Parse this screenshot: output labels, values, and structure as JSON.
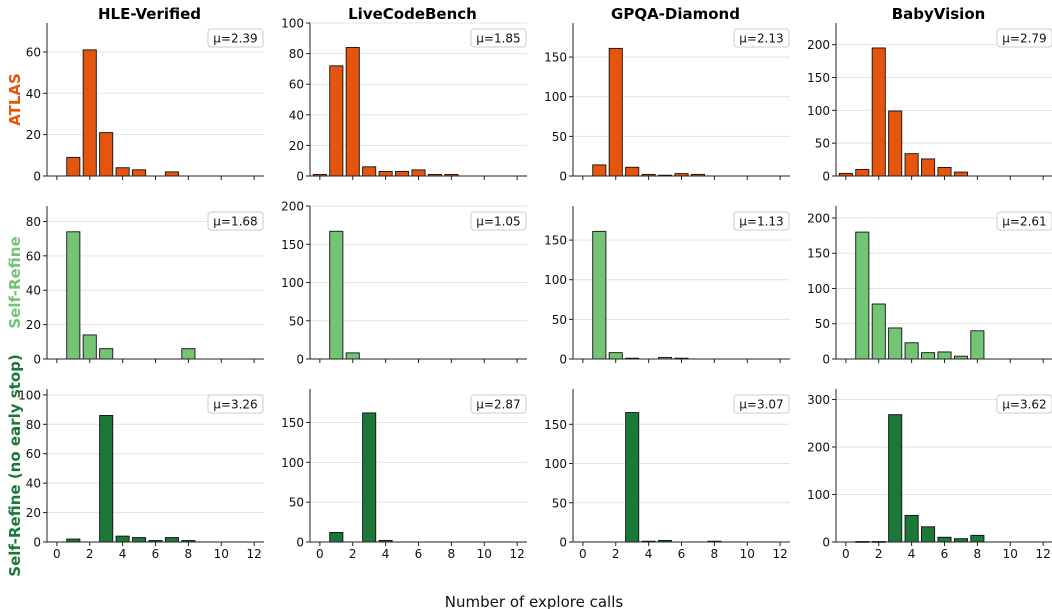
{
  "figure": {
    "xlabel": "Number of explore calls",
    "columns": [
      "HLE-Verified",
      "LiveCodeBench",
      "GPQA-Diamond",
      "BabyVision"
    ],
    "rows": [
      {
        "label": "ATLAS",
        "color": "#e6550d"
      },
      {
        "label": "Self-Refine",
        "color": "#74c476"
      },
      {
        "label": "Self-Refine (no early stop)",
        "color": "#1b7837"
      }
    ],
    "x_ticks": [
      "0",
      "2",
      "4",
      "6",
      "8",
      "10",
      "12"
    ]
  },
  "chart_data": [
    {
      "type": "bar",
      "title": "HLE-Verified",
      "row": "ATLAS",
      "x": [
        0,
        1,
        2,
        3,
        4,
        5,
        6,
        7,
        8,
        9,
        10,
        11,
        12
      ],
      "values": [
        0,
        9,
        61,
        21,
        4,
        3,
        0,
        2,
        0,
        0,
        0,
        0,
        0
      ],
      "ylim": [
        0,
        74
      ],
      "yticks": [
        0,
        20,
        40,
        60
      ],
      "mean_label": "μ=2.39"
    },
    {
      "type": "bar",
      "title": "LiveCodeBench",
      "row": "ATLAS",
      "x": [
        0,
        1,
        2,
        3,
        4,
        5,
        6,
        7,
        8,
        9,
        10,
        11,
        12
      ],
      "values": [
        1,
        72,
        84,
        6,
        3,
        3,
        4,
        1,
        1,
        0,
        0,
        0,
        0
      ],
      "ylim": [
        0,
        100
      ],
      "yticks": [
        0,
        20,
        40,
        60,
        80,
        100
      ],
      "mean_label": "μ=1.85"
    },
    {
      "type": "bar",
      "title": "GPQA-Diamond",
      "row": "ATLAS",
      "x": [
        0,
        1,
        2,
        3,
        4,
        5,
        6,
        7,
        8,
        9,
        10,
        11,
        12
      ],
      "values": [
        0,
        14,
        161,
        11,
        2,
        1,
        3,
        2,
        0,
        0,
        0,
        0,
        0
      ],
      "ylim": [
        0,
        193
      ],
      "yticks": [
        0,
        50,
        100,
        150
      ],
      "mean_label": "μ=2.13"
    },
    {
      "type": "bar",
      "title": "BabyVision",
      "row": "ATLAS",
      "x": [
        0,
        1,
        2,
        3,
        4,
        5,
        6,
        7,
        8,
        9,
        10,
        11,
        12
      ],
      "values": [
        4,
        10,
        195,
        99,
        34,
        26,
        13,
        6,
        0,
        0,
        0,
        0,
        0
      ],
      "ylim": [
        0,
        233
      ],
      "yticks": [
        0,
        50,
        100,
        150,
        200
      ],
      "mean_label": "μ=2.79"
    },
    {
      "type": "bar",
      "title": "HLE-Verified",
      "row": "Self-Refine",
      "x": [
        0,
        1,
        2,
        3,
        4,
        5,
        6,
        7,
        8,
        9,
        10,
        11,
        12
      ],
      "values": [
        0,
        74,
        14,
        6,
        0,
        0,
        0,
        0,
        6,
        0,
        0,
        0,
        0
      ],
      "ylim": [
        0,
        89
      ],
      "yticks": [
        0,
        20,
        40,
        60,
        80
      ],
      "mean_label": "μ=1.68"
    },
    {
      "type": "bar",
      "title": "LiveCodeBench",
      "row": "Self-Refine",
      "x": [
        0,
        1,
        2,
        3,
        4,
        5,
        6,
        7,
        8,
        9,
        10,
        11,
        12
      ],
      "values": [
        0,
        167,
        8,
        0,
        0,
        0,
        0,
        0,
        0,
        0,
        0,
        0,
        0
      ],
      "ylim": [
        0,
        200
      ],
      "yticks": [
        0,
        50,
        100,
        150,
        200
      ],
      "mean_label": "μ=1.05"
    },
    {
      "type": "bar",
      "title": "GPQA-Diamond",
      "row": "Self-Refine",
      "x": [
        0,
        1,
        2,
        3,
        4,
        5,
        6,
        7,
        8,
        9,
        10,
        11,
        12
      ],
      "values": [
        0,
        161,
        8,
        1,
        0,
        2,
        1,
        0,
        0,
        0,
        0,
        0,
        0
      ],
      "ylim": [
        0,
        193
      ],
      "yticks": [
        0,
        50,
        100,
        150
      ],
      "mean_label": "μ=1.13"
    },
    {
      "type": "bar",
      "title": "BabyVision",
      "row": "Self-Refine",
      "x": [
        0,
        1,
        2,
        3,
        4,
        5,
        6,
        7,
        8,
        9,
        10,
        11,
        12
      ],
      "values": [
        0,
        180,
        78,
        44,
        23,
        9,
        10,
        4,
        40,
        0,
        0,
        0,
        0
      ],
      "ylim": [
        0,
        217
      ],
      "yticks": [
        0,
        50,
        100,
        150,
        200
      ],
      "mean_label": "μ=2.61"
    },
    {
      "type": "bar",
      "title": "HLE-Verified",
      "row": "Self-Refine (no early stop)",
      "x": [
        0,
        1,
        2,
        3,
        4,
        5,
        6,
        7,
        8,
        9,
        10,
        11,
        12
      ],
      "values": [
        0,
        2,
        0,
        86,
        4,
        3,
        1,
        3,
        1,
        0,
        0,
        0,
        0
      ],
      "ylim": [
        0,
        104
      ],
      "yticks": [
        0,
        20,
        40,
        60,
        80,
        100
      ],
      "mean_label": "μ=3.26"
    },
    {
      "type": "bar",
      "title": "LiveCodeBench",
      "row": "Self-Refine (no early stop)",
      "x": [
        0,
        1,
        2,
        3,
        4,
        5,
        6,
        7,
        8,
        9,
        10,
        11,
        12
      ],
      "values": [
        0,
        12,
        0,
        162,
        2,
        0,
        0,
        0,
        0,
        0,
        0,
        0,
        0
      ],
      "ylim": [
        0,
        192
      ],
      "yticks": [
        0,
        50,
        100,
        150
      ],
      "mean_label": "μ=2.87"
    },
    {
      "type": "bar",
      "title": "GPQA-Diamond",
      "row": "Self-Refine (no early stop)",
      "x": [
        0,
        1,
        2,
        3,
        4,
        5,
        6,
        7,
        8,
        9,
        10,
        11,
        12
      ],
      "values": [
        0,
        0,
        0,
        165,
        1,
        2,
        0,
        0,
        1,
        0,
        0,
        0,
        0
      ],
      "ylim": [
        0,
        195
      ],
      "yticks": [
        0,
        50,
        100,
        150
      ],
      "mean_label": "μ=3.07"
    },
    {
      "type": "bar",
      "title": "BabyVision",
      "row": "Self-Refine (no early stop)",
      "x": [
        0,
        1,
        2,
        3,
        4,
        5,
        6,
        7,
        8,
        9,
        10,
        11,
        12
      ],
      "values": [
        0,
        1,
        1,
        268,
        56,
        32,
        10,
        7,
        14,
        0,
        0,
        0,
        0
      ],
      "ylim": [
        0,
        322
      ],
      "yticks": [
        0,
        100,
        200,
        300
      ],
      "mean_label": "μ=3.62"
    }
  ]
}
